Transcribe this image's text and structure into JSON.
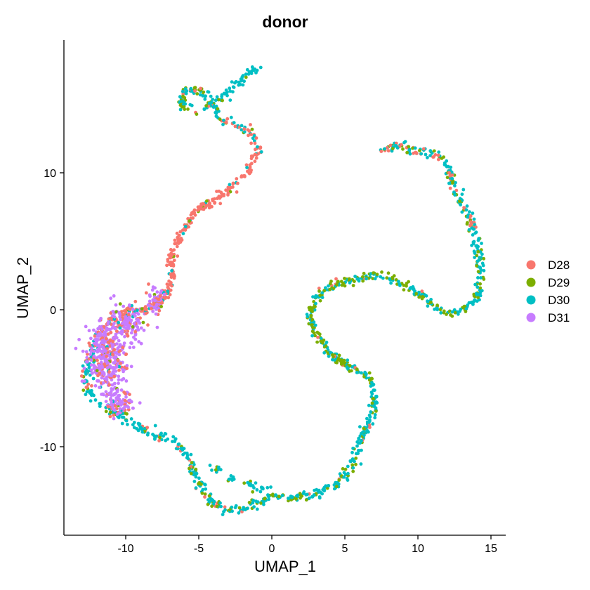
{
  "chart_data": {
    "type": "scatter",
    "title": "donor",
    "xlabel": "UMAP_1",
    "ylabel": "UMAP_2",
    "xlim": [
      -14,
      16
    ],
    "ylim": [
      -16.5,
      19.5
    ],
    "x_ticks": [
      -10,
      -5,
      0,
      5,
      10,
      15
    ],
    "x_tick_labels": [
      "-10",
      "-5",
      "0",
      "5",
      "10",
      "15"
    ],
    "y_ticks": [
      -10,
      0,
      10
    ],
    "y_tick_labels": [
      "-10",
      "0",
      "10"
    ],
    "grid": false,
    "legend_position": "right",
    "series": [
      {
        "name": "D28",
        "color": "#F8766D"
      },
      {
        "name": "D29",
        "color": "#7CAE00"
      },
      {
        "name": "D30",
        "color": "#00BFC4"
      },
      {
        "name": "D31",
        "color": "#C77CFF"
      }
    ],
    "trajectory": [
      [
        -0.8,
        18.0
      ],
      [
        -2.0,
        16.8
      ],
      [
        -3.5,
        15.3
      ],
      [
        -5.0,
        14.5
      ],
      [
        -6.2,
        15.0
      ],
      [
        -6.0,
        16.1
      ],
      [
        -4.8,
        16.0
      ],
      [
        -3.2,
        13.7
      ],
      [
        -1.6,
        13.0
      ],
      [
        -0.8,
        11.8
      ],
      [
        -1.8,
        9.8
      ],
      [
        -3.5,
        8.3
      ],
      [
        -5.2,
        7.2
      ],
      [
        -6.1,
        5.8
      ],
      [
        -6.5,
        4.8
      ],
      [
        -6.9,
        3.8
      ],
      [
        -6.8,
        2.8
      ],
      [
        -6.9,
        1.8
      ],
      [
        -7.3,
        1.0
      ],
      [
        -7.8,
        0.3
      ],
      [
        -8.8,
        0.0
      ],
      [
        -10.0,
        -0.3
      ],
      [
        -11.0,
        -0.8
      ],
      [
        -11.8,
        -1.8
      ],
      [
        -12.3,
        -3.0
      ],
      [
        -12.6,
        -4.2
      ],
      [
        -12.7,
        -5.3
      ],
      [
        -12.3,
        -6.3
      ],
      [
        -11.6,
        -7.0
      ],
      [
        -10.5,
        -7.6
      ],
      [
        -9.5,
        -8.3
      ],
      [
        -8.5,
        -9.0
      ],
      [
        -7.0,
        -9.4
      ],
      [
        -6.0,
        -10.2
      ],
      [
        -5.5,
        -11.3
      ],
      [
        -5.0,
        -12.7
      ],
      [
        -4.3,
        -13.8
      ],
      [
        -3.3,
        -14.5
      ],
      [
        -2.3,
        -14.6
      ],
      [
        -1.2,
        -14.2
      ],
      [
        0.0,
        -13.7
      ],
      [
        1.5,
        -13.7
      ],
      [
        2.7,
        -13.6
      ],
      [
        3.5,
        -13.2
      ],
      [
        4.5,
        -12.7
      ],
      [
        5.5,
        -11.5
      ],
      [
        5.9,
        -10.2
      ],
      [
        6.2,
        -9.0
      ],
      [
        6.9,
        -7.8
      ],
      [
        7.1,
        -6.3
      ],
      [
        6.8,
        -5.3
      ],
      [
        6.0,
        -4.5
      ],
      [
        4.8,
        -3.8
      ],
      [
        3.7,
        -2.9
      ],
      [
        2.9,
        -1.6
      ],
      [
        2.6,
        -0.3
      ],
      [
        3.3,
        1.2
      ],
      [
        4.5,
        1.9
      ],
      [
        5.8,
        2.2
      ],
      [
        7.0,
        2.6
      ],
      [
        8.3,
        2.3
      ],
      [
        9.0,
        1.8
      ],
      [
        10.0,
        1.3
      ],
      [
        11.0,
        0.3
      ],
      [
        12.0,
        -0.2
      ],
      [
        12.9,
        -0.1
      ],
      [
        13.9,
        0.5
      ],
      [
        14.1,
        1.8
      ],
      [
        14.3,
        2.5
      ],
      [
        14.3,
        3.6
      ],
      [
        14.0,
        5.2
      ],
      [
        13.8,
        6.2
      ],
      [
        13.3,
        7.1
      ],
      [
        12.8,
        8.1
      ],
      [
        12.4,
        9.2
      ],
      [
        12.2,
        10.3
      ],
      [
        11.7,
        11.0
      ],
      [
        11.0,
        11.4
      ],
      [
        10.0,
        11.6
      ],
      [
        9.0,
        11.9
      ],
      [
        8.0,
        11.7
      ],
      [
        7.5,
        11.7
      ]
    ],
    "cloud": [
      [
        -11.3,
        -3.5,
        1.2,
        2.6
      ],
      [
        -9.8,
        -1.0,
        0.9,
        1.2
      ],
      [
        -10.5,
        -6.8,
        0.9,
        0.8
      ],
      [
        -7.9,
        0.6,
        0.5,
        1.0
      ]
    ],
    "curve_groups": [
      [
        [
          0.0,
          0.04,
          0.02,
          0.04,
          0.9
        ],
        [
          0.04,
          0.09,
          0.05,
          0.45,
          0.5
        ],
        [
          0.09,
          0.115,
          0.05,
          0.3,
          0.65
        ],
        [
          0.115,
          0.14,
          0.45,
          0.05,
          0.5
        ],
        [
          0.14,
          0.33,
          0.86,
          0.04,
          0.1
        ],
        [
          0.33,
          0.46,
          0.12,
          0.1,
          0.78
        ],
        [
          0.46,
          0.66,
          0.04,
          0.3,
          0.66
        ],
        [
          0.66,
          0.8,
          0.03,
          0.55,
          0.42
        ],
        [
          0.8,
          0.9,
          0.02,
          0.3,
          0.68
        ],
        [
          0.9,
          1.0,
          0.3,
          0.25,
          0.45
        ]
      ]
    ],
    "cloud_mix": [
      0.22,
      0.02,
      0.04,
      0.72
    ],
    "loop_spur": [
      [
        -3.8,
        -11.6
      ],
      [
        -2.6,
        -12.3
      ],
      [
        -1.5,
        -12.7
      ],
      [
        -0.8,
        -13.1
      ]
    ]
  }
}
